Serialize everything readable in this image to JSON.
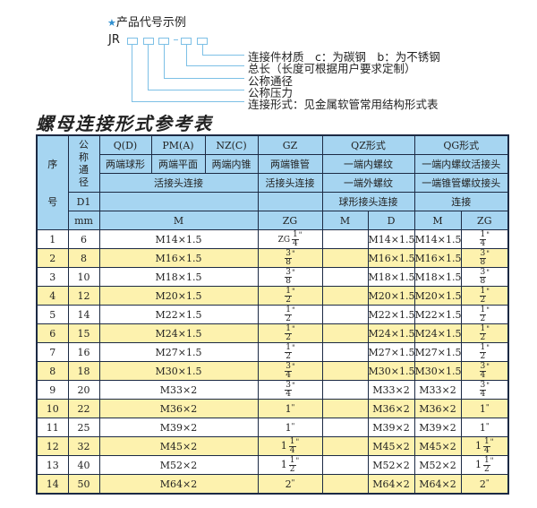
{
  "example": {
    "title": "产品代号示例",
    "star_icon": "star-icon",
    "code_prefix": "JR",
    "labels": [
      "连接件材质　c：为碳钢　b：为不锈钢",
      "总长（长度可根据用户要求定制）",
      "公称通径",
      "公称压力",
      "连接形式：见金属软管常用结构形式表"
    ]
  },
  "table_title": "螺母连接形式参考表",
  "header": {
    "seq": "序",
    "seq2": "号",
    "nominal": "公称通径",
    "q": "Q(D)",
    "pm": "PM(A)",
    "nz": "NZ(C)",
    "gz": "GZ",
    "qz": "QZ形式",
    "qg": "QG形式",
    "q_desc": "两端球形",
    "pm_desc": "两端平面",
    "nz_desc": "两端内锥",
    "gz_desc": "两端锥管",
    "qz_desc1": "一端内螺纹",
    "qg_desc1": "一端内螺纹活接头",
    "union": "活接头连接",
    "gz_union": "活接头连接",
    "qz_desc2": "一端外螺纹",
    "qg_desc2": "一端锥管螺纹接头",
    "d1": "D1",
    "qz_desc3": "球形接头连接",
    "qg_desc3": "连接",
    "mm": "mm",
    "m": "M",
    "zg": "ZG",
    "qz_m": "M",
    "qz_d": "D",
    "qg_m": "M",
    "qg_zg": "ZG"
  },
  "colors": {
    "header_bg": "#a6d5f1",
    "alt_row": "#fdf2ae",
    "border": "#1c2a44",
    "accent": "#7dc0e6"
  },
  "rows": [
    {
      "no": "1",
      "d1": "6",
      "m": "M14×1.5",
      "zg": {
        "prefix": "ZG",
        "whole": "",
        "num": "1",
        "den": "4"
      },
      "qz_m": "",
      "qz_d": "M14×1.5",
      "qg_m": "M14×1.5",
      "qg_zg": {
        "whole": "",
        "num": "1",
        "den": "4"
      }
    },
    {
      "no": "2",
      "d1": "8",
      "m": "M16×1.5",
      "zg": {
        "whole": "",
        "num": "3",
        "den": "8"
      },
      "qz_m": "",
      "qz_d": "M16×1.5",
      "qg_m": "M16×1.5",
      "qg_zg": {
        "whole": "",
        "num": "3",
        "den": "8"
      }
    },
    {
      "no": "3",
      "d1": "10",
      "m": "M18×1.5",
      "zg": {
        "whole": "",
        "num": "3",
        "den": "8"
      },
      "qz_m": "",
      "qz_d": "M18×1.5",
      "qg_m": "M18×1.5",
      "qg_zg": {
        "whole": "",
        "num": "3",
        "den": "8"
      }
    },
    {
      "no": "4",
      "d1": "12",
      "m": "M20×1.5",
      "zg": {
        "whole": "",
        "num": "1",
        "den": "2"
      },
      "qz_m": "",
      "qz_d": "M20×1.5",
      "qg_m": "M20×1.5",
      "qg_zg": {
        "whole": "",
        "num": "1",
        "den": "2"
      }
    },
    {
      "no": "5",
      "d1": "14",
      "m": "M22×1.5",
      "zg": {
        "whole": "",
        "num": "1",
        "den": "2"
      },
      "qz_m": "",
      "qz_d": "M22×1.5",
      "qg_m": "M22×1.5",
      "qg_zg": {
        "whole": "",
        "num": "1",
        "den": "2"
      }
    },
    {
      "no": "6",
      "d1": "15",
      "m": "M24×1.5",
      "zg": {
        "whole": "",
        "num": "1",
        "den": "2"
      },
      "qz_m": "",
      "qz_d": "M24×1.5",
      "qg_m": "M24×1.5",
      "qg_zg": {
        "whole": "",
        "num": "1",
        "den": "2"
      }
    },
    {
      "no": "7",
      "d1": "16",
      "m": "M27×1.5",
      "zg": {
        "whole": "",
        "num": "1",
        "den": "2"
      },
      "qz_m": "",
      "qz_d": "M27×1.5",
      "qg_m": "M27×1.5",
      "qg_zg": {
        "whole": "",
        "num": "1",
        "den": "2"
      }
    },
    {
      "no": "8",
      "d1": "18",
      "m": "M30×1.5",
      "zg": {
        "whole": "",
        "num": "3",
        "den": "4"
      },
      "qz_m": "",
      "qz_d": "M30×1.5",
      "qg_m": "M30×1.5",
      "qg_zg": {
        "whole": "",
        "num": "3",
        "den": "4"
      }
    },
    {
      "no": "9",
      "d1": "20",
      "m": "M33×2",
      "zg": {
        "whole": "",
        "num": "3",
        "den": "4"
      },
      "qz_m": "",
      "qz_d": "M33×2",
      "qg_m": "M33×2",
      "qg_zg": {
        "whole": "",
        "num": "3",
        "den": "4"
      }
    },
    {
      "no": "10",
      "d1": "22",
      "m": "M36×2",
      "zg": {
        "whole": "1",
        "num": "",
        "den": ""
      },
      "qz_m": "",
      "qz_d": "M36×2",
      "qg_m": "M36×2",
      "qg_zg": {
        "whole": "1",
        "num": "",
        "den": ""
      }
    },
    {
      "no": "11",
      "d1": "25",
      "m": "M39×2",
      "zg": {
        "whole": "1",
        "num": "",
        "den": ""
      },
      "qz_m": "",
      "qz_d": "M39×2",
      "qg_m": "M39×2",
      "qg_zg": {
        "whole": "1",
        "num": "",
        "den": ""
      }
    },
    {
      "no": "12",
      "d1": "32",
      "m": "M45×2",
      "zg": {
        "whole": "1",
        "num": "1",
        "den": "4"
      },
      "qz_m": "",
      "qz_d": "M45×2",
      "qg_m": "M45×2",
      "qg_zg": {
        "whole": "1",
        "num": "1",
        "den": "4"
      }
    },
    {
      "no": "13",
      "d1": "40",
      "m": "M52×2",
      "zg": {
        "whole": "1",
        "num": "1",
        "den": "2"
      },
      "qz_m": "",
      "qz_d": "M52×2",
      "qg_m": "M52×2",
      "qg_zg": {
        "whole": "1",
        "num": "1",
        "den": "2"
      }
    },
    {
      "no": "14",
      "d1": "50",
      "m": "M64×2",
      "zg": {
        "whole": "2",
        "num": "",
        "den": ""
      },
      "qz_m": "",
      "qz_d": "M64×2",
      "qg_m": "M64×2",
      "qg_zg": {
        "whole": "2",
        "num": "",
        "den": ""
      }
    }
  ]
}
